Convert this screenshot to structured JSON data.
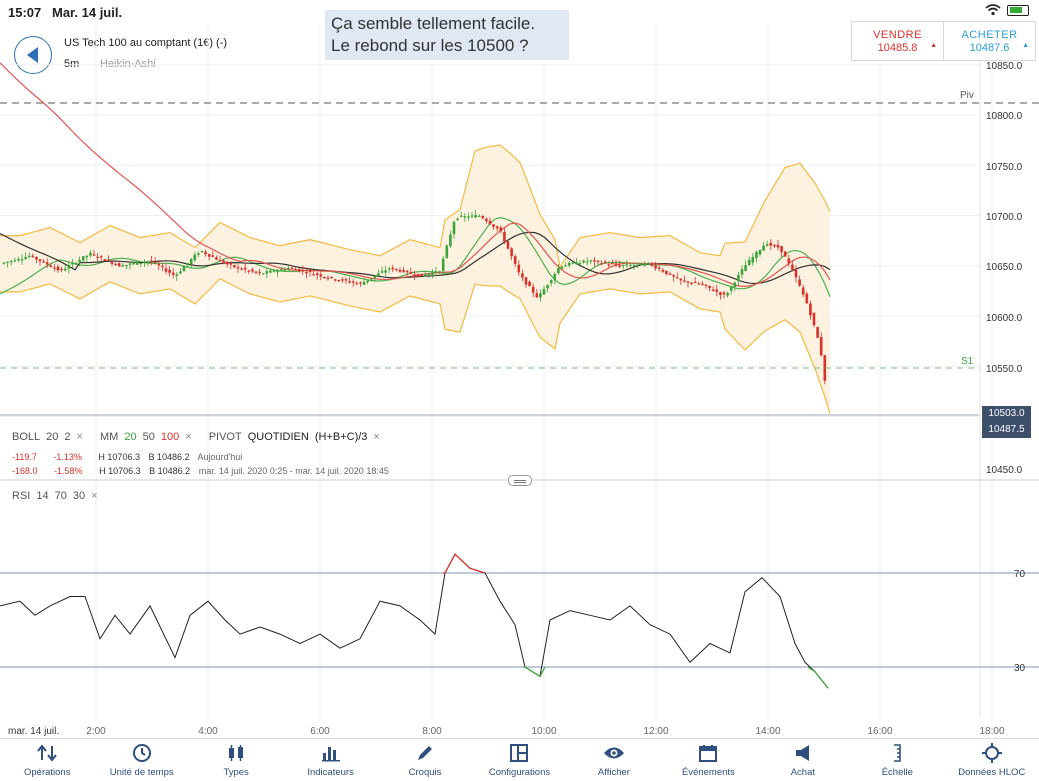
{
  "status_bar": {
    "time": "15:07",
    "date": "Mar. 14 juil."
  },
  "header": {
    "instrument": "US Tech 100 au comptant (1€) (-)",
    "timeframe": "5m",
    "chart_kind": "Heikin-Ashi"
  },
  "annotation": {
    "line1": "Ça semble tellement facile.",
    "line2": "Le rebond sur les 10500 ?"
  },
  "trade": {
    "sell_label": "VENDRE",
    "sell_price": "10485.8",
    "buy_label": "ACHETER",
    "buy_price": "10487.6"
  },
  "price_axis": {
    "ticks": [
      "10850.0",
      "10800.0",
      "10750.0",
      "10700.0",
      "10650.0",
      "10600.0",
      "10550.0",
      "10450.0"
    ],
    "tag_bid": "10503.0",
    "tag_ask": "10487.5",
    "piv_label": "Piv",
    "s1_label": "S1"
  },
  "legend": {
    "boll": "BOLL",
    "boll_p1": "20",
    "boll_p2": "2",
    "mm": "MM",
    "mm_p1": "20",
    "mm_p2": "50",
    "mm_p3": "100",
    "pivot": "PIVOT",
    "pivot_mode": "QUOTIDIEN",
    "pivot_formula": "(H+B+C)/3",
    "close_icon": "×",
    "row1": {
      "change": "-119.7",
      "pct": "-1.13%",
      "high": "H 10706.3",
      "low": "B 10486.2",
      "period": "Aujourd'hui"
    },
    "row2": {
      "change": "-168.0",
      "pct": "-1.58%",
      "high": "H 10706.3",
      "low": "B 10486.2",
      "period": "mar. 14 juil. 2020 0:25 - mar. 14 juil. 2020 18:45"
    }
  },
  "rsi": {
    "label": "RSI",
    "p1": "14",
    "p2": "70",
    "p3": "30",
    "upper": "70",
    "lower": "30"
  },
  "time_axis": {
    "date": "mar. 14 juil.",
    "ticks": [
      "2:00",
      "4:00",
      "6:00",
      "8:00",
      "10:00",
      "12:00",
      "14:00",
      "16:00",
      "18:00"
    ]
  },
  "toolbar": [
    {
      "label": "Opérations",
      "icon": "arrows-updown-icon"
    },
    {
      "label": "Unité de temps",
      "icon": "clock-icon"
    },
    {
      "label": "Types",
      "icon": "candles-icon"
    },
    {
      "label": "Indicateurs",
      "icon": "bar-chart-icon"
    },
    {
      "label": "Croquis",
      "icon": "pencil-icon"
    },
    {
      "label": "Configurations",
      "icon": "layout-icon"
    },
    {
      "label": "Afficher",
      "icon": "eye-icon"
    },
    {
      "label": "Événements",
      "icon": "calendar-icon"
    },
    {
      "label": "Achat",
      "icon": "megaphone-icon"
    },
    {
      "label": "Échelle",
      "icon": "scale-icon"
    },
    {
      "label": "Données HLOC",
      "icon": "crosshair-icon"
    }
  ],
  "colors": {
    "accent": "#2f6fb5",
    "sell": "#d9312b",
    "buy": "#2b9ed9",
    "candle_up": "#3aa63a",
    "candle_down": "#d9312b",
    "boll": "#f5b942",
    "ma20": "#4caf50",
    "ma50": "#333333",
    "ma100": "#e0564f"
  }
}
